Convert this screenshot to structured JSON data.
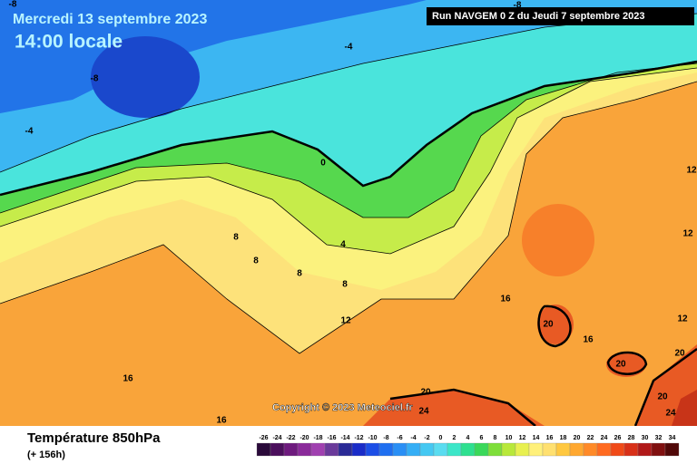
{
  "header": {
    "date": "Mercredi 13 septembre 2023",
    "time": "14:00 locale",
    "run": "Run NAVGEM 0 Z du Jeudi 7 septembre 2023"
  },
  "map": {
    "contour_labels": [
      -8,
      -8,
      -4,
      -4,
      -8,
      0,
      4,
      8,
      8,
      8,
      8,
      12,
      12,
      12,
      12,
      16,
      16,
      16,
      16,
      20,
      20,
      20,
      20,
      20,
      24,
      24
    ],
    "copyright": "Copyright © 2023 Meteociel.fr"
  },
  "footer": {
    "title": "Température 850hPa",
    "subtitle": "(+ 156h)"
  },
  "legend": {
    "values": [
      -26,
      -24,
      -22,
      -20,
      -18,
      -16,
      -14,
      -12,
      -10,
      -8,
      -6,
      -4,
      -2,
      0,
      2,
      4,
      6,
      8,
      10,
      12,
      14,
      16,
      18,
      20,
      22,
      24,
      26,
      28,
      30,
      32,
      34
    ],
    "colors": [
      "#2a0a3a",
      "#4b0f5c",
      "#6e1a7e",
      "#8a2a9a",
      "#a040b0",
      "#6a3a9a",
      "#2a2a96",
      "#1a2cc8",
      "#1c4ee6",
      "#1f6ff0",
      "#2a8ff5",
      "#35aef5",
      "#45c8f2",
      "#5adcf0",
      "#3ce6c8",
      "#2ee090",
      "#3ad85a",
      "#7ede3a",
      "#b8e83a",
      "#e8f050",
      "#fff07a",
      "#ffe070",
      "#ffc840",
      "#ffa830",
      "#ff8a28",
      "#ff6a20",
      "#f04a18",
      "#d83018",
      "#b01818",
      "#801010",
      "#500808"
    ]
  }
}
